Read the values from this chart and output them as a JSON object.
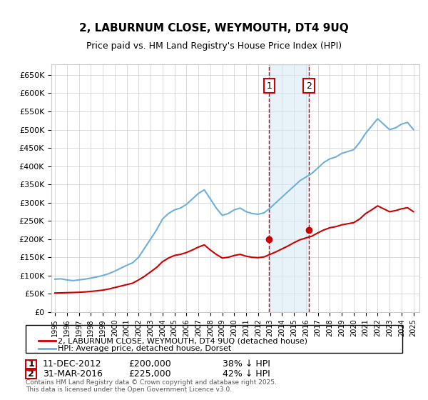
{
  "title": "2, LABURNUM CLOSE, WEYMOUTH, DT4 9UQ",
  "subtitle": "Price paid vs. HM Land Registry's House Price Index (HPI)",
  "footer": "Contains HM Land Registry data © Crown copyright and database right 2025.\nThis data is licensed under the Open Government Licence v3.0.",
  "legend_line1": "2, LABURNUM CLOSE, WEYMOUTH, DT4 9UQ (detached house)",
  "legend_line2": "HPI: Average price, detached house, Dorset",
  "transaction1_label": "1",
  "transaction1_date": "11-DEC-2012",
  "transaction1_price": "£200,000",
  "transaction1_hpi": "38% ↓ HPI",
  "transaction2_label": "2",
  "transaction2_date": "31-MAR-2016",
  "transaction2_price": "£225,000",
  "transaction2_hpi": "42% ↓ HPI",
  "hpi_color": "#6eb0d8",
  "price_color": "#cc0000",
  "marker_color": "#cc0000",
  "shading_color": "#d0e8f5",
  "shading_alpha": 0.5,
  "dashed_line_color": "#cc0000",
  "ylim": [
    0,
    680000
  ],
  "yticks": [
    0,
    50000,
    100000,
    150000,
    200000,
    250000,
    300000,
    350000,
    400000,
    450000,
    500000,
    550000,
    600000,
    650000
  ],
  "ytick_labels": [
    "£0",
    "£50K",
    "£100K",
    "£150K",
    "£200K",
    "£250K",
    "£300K",
    "£350K",
    "£400K",
    "£450K",
    "£500K",
    "£550K",
    "£600K",
    "£650K"
  ],
  "grid_color": "#cccccc",
  "background_color": "#ffffff",
  "transaction1_x": 2012.92,
  "transaction2_x": 2016.25,
  "transaction1_y": 200000,
  "transaction2_y": 225000,
  "shade_x1": 2012.92,
  "shade_x2": 2016.25,
  "shade_ymin": 0,
  "shade_ymax": 680000,
  "hpi_years": [
    1995,
    1995.5,
    1996,
    1996.5,
    1997,
    1997.5,
    1998,
    1998.5,
    1999,
    1999.5,
    2000,
    2000.5,
    2001,
    2001.5,
    2002,
    2002.5,
    2003,
    2003.5,
    2004,
    2004.5,
    2005,
    2005.5,
    2006,
    2006.5,
    2007,
    2007.5,
    2008,
    2008.5,
    2009,
    2009.5,
    2010,
    2010.5,
    2011,
    2011.5,
    2012,
    2012.5,
    2013,
    2013.5,
    2014,
    2014.5,
    2015,
    2015.5,
    2016,
    2016.5,
    2017,
    2017.5,
    2018,
    2018.5,
    2019,
    2019.5,
    2020,
    2020.5,
    2021,
    2021.5,
    2022,
    2022.5,
    2023,
    2023.5,
    2024,
    2024.5,
    2025
  ],
  "hpi_values": [
    90000,
    91000,
    88000,
    86000,
    88000,
    90000,
    93000,
    96000,
    100000,
    105000,
    112000,
    120000,
    128000,
    135000,
    150000,
    175000,
    200000,
    225000,
    255000,
    270000,
    280000,
    285000,
    295000,
    310000,
    325000,
    335000,
    310000,
    285000,
    265000,
    270000,
    280000,
    285000,
    275000,
    270000,
    268000,
    272000,
    285000,
    300000,
    315000,
    330000,
    345000,
    360000,
    370000,
    380000,
    395000,
    410000,
    420000,
    425000,
    435000,
    440000,
    445000,
    465000,
    490000,
    510000,
    530000,
    515000,
    500000,
    505000,
    515000,
    520000,
    500000
  ],
  "price_years": [
    1995,
    1995.5,
    1996,
    1996.5,
    1997,
    1997.5,
    1998,
    1998.5,
    1999,
    1999.5,
    2000,
    2000.5,
    2001,
    2001.5,
    2002,
    2002.5,
    2003,
    2003.5,
    2004,
    2004.5,
    2005,
    2005.5,
    2006,
    2006.5,
    2007,
    2007.5,
    2008,
    2008.5,
    2009,
    2009.5,
    2010,
    2010.5,
    2011,
    2011.5,
    2012,
    2012.5,
    2013,
    2013.5,
    2014,
    2014.5,
    2015,
    2015.5,
    2016,
    2016.5,
    2017,
    2017.5,
    2018,
    2018.5,
    2019,
    2019.5,
    2020,
    2020.5,
    2021,
    2021.5,
    2022,
    2022.5,
    2023,
    2023.5,
    2024,
    2024.5,
    2025
  ],
  "price_values": [
    52000,
    52500,
    53000,
    53500,
    54000,
    55000,
    56500,
    58000,
    60000,
    63000,
    67000,
    71000,
    75000,
    79000,
    88000,
    98000,
    110000,
    122000,
    138000,
    148000,
    155000,
    158000,
    163000,
    170000,
    178000,
    184000,
    170000,
    158000,
    148000,
    150000,
    155000,
    158000,
    153000,
    150000,
    149000,
    151000,
    158000,
    165000,
    173000,
    181000,
    190000,
    198000,
    203000,
    208000,
    217000,
    225000,
    231000,
    234000,
    239000,
    242000,
    245000,
    255000,
    270000,
    280000,
    291000,
    283000,
    275000,
    278000,
    283000,
    286000,
    275000
  ],
  "xtick_years": [
    1995,
    1996,
    1997,
    1998,
    1999,
    2000,
    2001,
    2002,
    2003,
    2004,
    2005,
    2006,
    2007,
    2008,
    2009,
    2010,
    2011,
    2012,
    2013,
    2014,
    2015,
    2016,
    2017,
    2018,
    2019,
    2020,
    2021,
    2022,
    2023,
    2024,
    2025
  ]
}
